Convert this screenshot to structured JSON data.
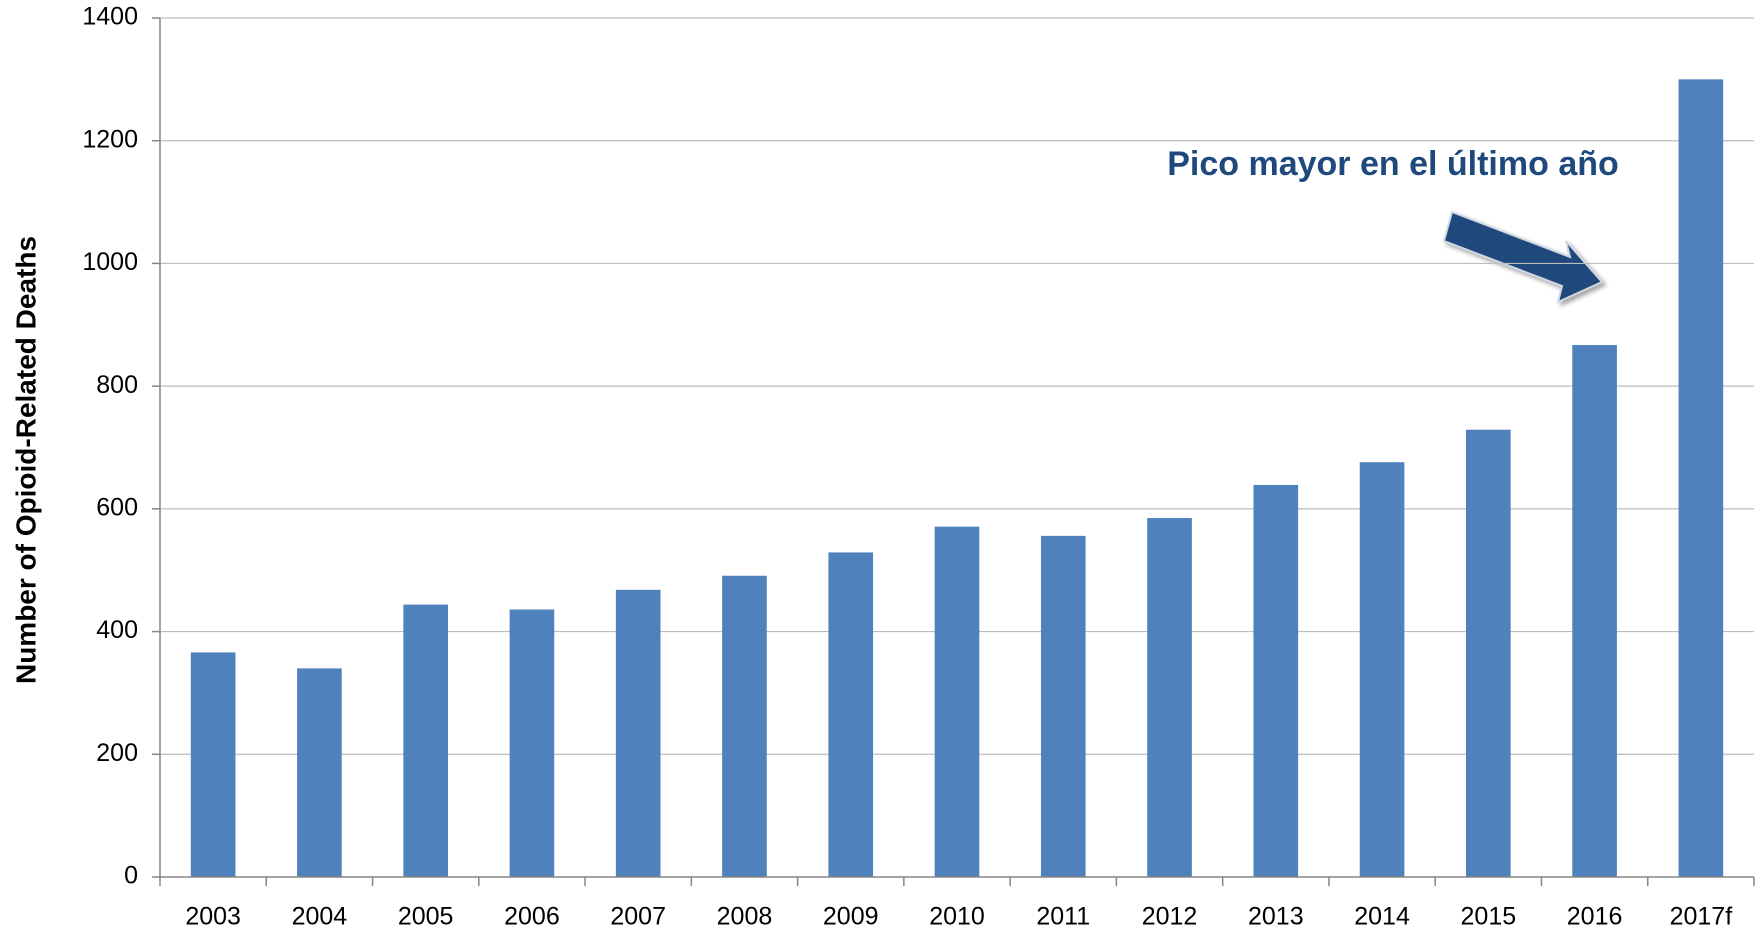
{
  "chart_data": {
    "type": "bar",
    "y_label": "Number of Opioid-Related Deaths",
    "annotation": "Pico mayor en el último año",
    "categories": [
      "2003",
      "2004",
      "2005",
      "2006",
      "2007",
      "2008",
      "2009",
      "2010",
      "2011",
      "2012",
      "2013",
      "2014",
      "2015",
      "2016",
      "2017f"
    ],
    "values": [
      366,
      340,
      444,
      436,
      468,
      491,
      529,
      571,
      556,
      585,
      639,
      676,
      729,
      867,
      1300
    ],
    "color": "#4f81bd",
    "ylim": [
      0,
      1400
    ],
    "yticks": [
      0,
      200,
      400,
      600,
      800,
      1000,
      1200,
      1400
    ],
    "grid": true
  }
}
